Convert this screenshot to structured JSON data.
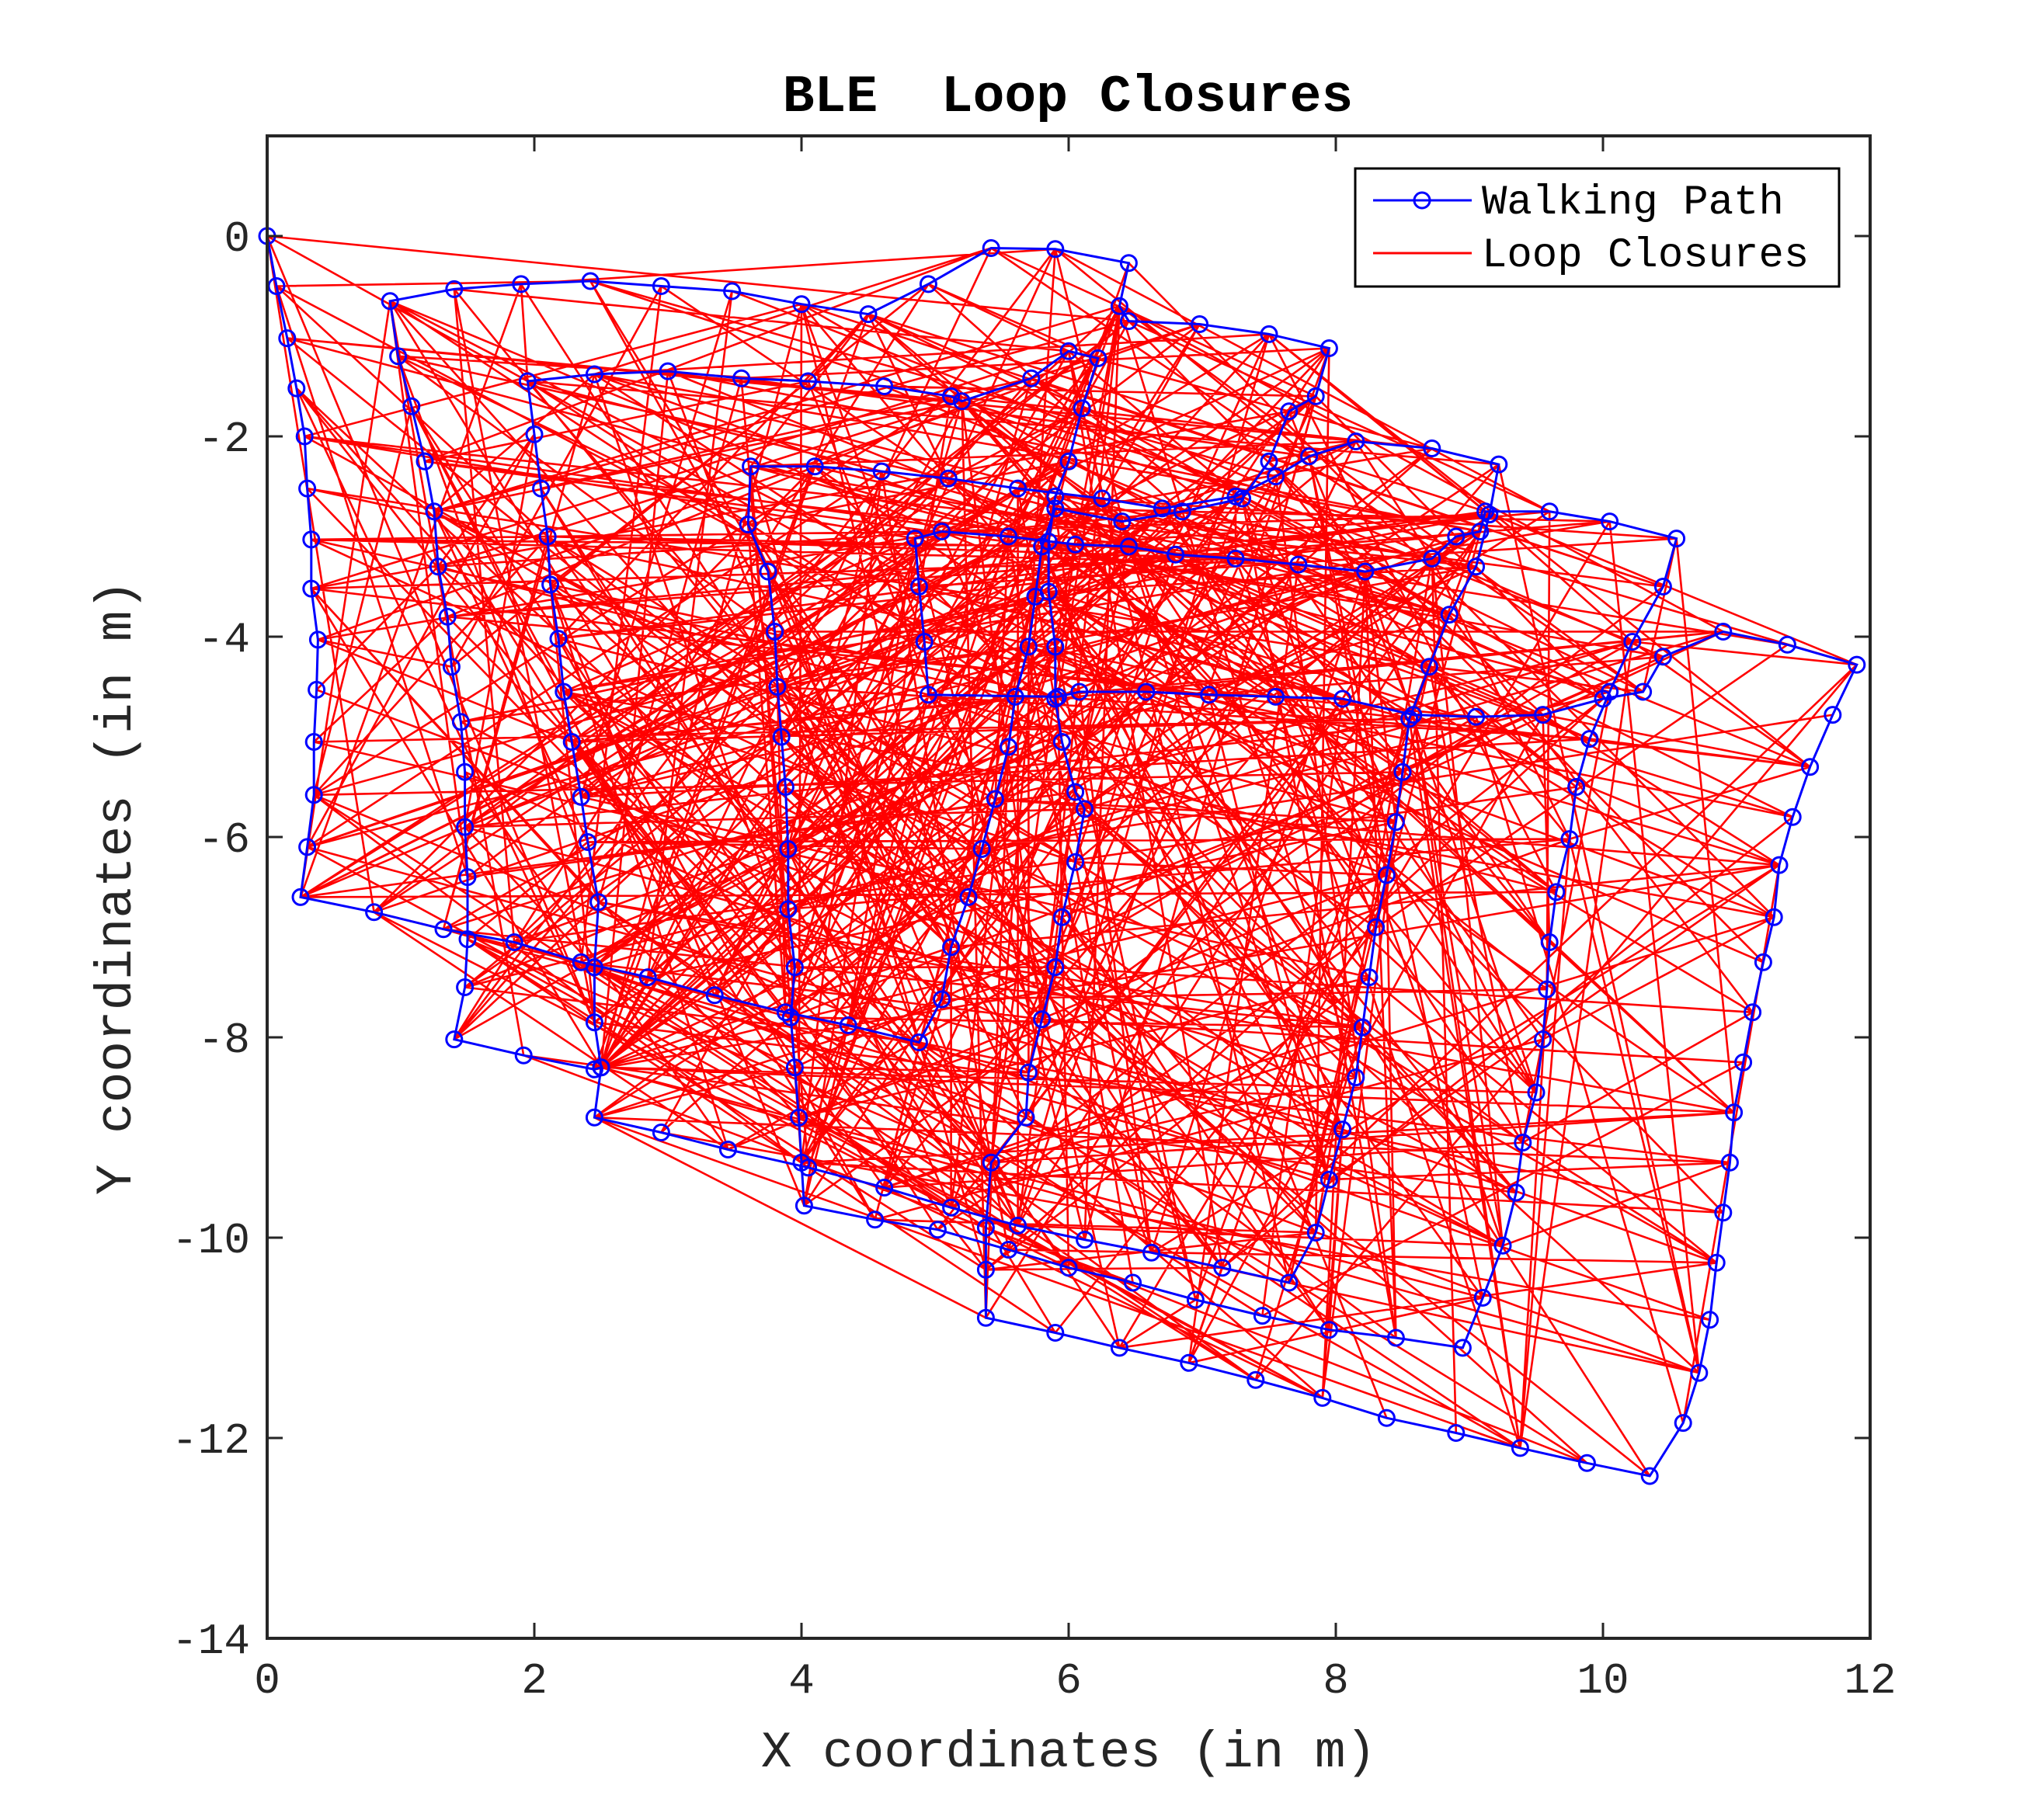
{
  "chart_data": {
    "type": "line",
    "title": "BLE  Loop Closures",
    "xlabel": "X coordinates (in m)",
    "ylabel": "Y coordinates (in m)",
    "xlim": [
      0,
      12
    ],
    "ylim": [
      -14,
      1
    ],
    "xticks": [
      "0",
      "2",
      "4",
      "6",
      "8",
      "10",
      "12"
    ],
    "yticks": [
      "0",
      "-2",
      "-4",
      "-6",
      "-8",
      "-10",
      "-12",
      "-14"
    ],
    "grid": false,
    "legend_position": "top-right",
    "series": [
      {
        "name": "Walking Path",
        "color": "#0000ff",
        "marker": "circle",
        "points": [
          [
            0,
            0
          ],
          [
            0.07,
            -0.5
          ],
          [
            0.15,
            -1.02
          ],
          [
            0.22,
            -1.52
          ],
          [
            0.28,
            -2.0
          ],
          [
            0.3,
            -2.52
          ],
          [
            0.33,
            -3.03
          ],
          [
            0.33,
            -3.52
          ],
          [
            0.38,
            -4.03
          ],
          [
            0.37,
            -4.53
          ],
          [
            0.35,
            -5.05
          ],
          [
            0.35,
            -5.58
          ],
          [
            0.3,
            -6.1
          ],
          [
            0.25,
            -6.6
          ],
          [
            0.8,
            -6.75
          ],
          [
            1.32,
            -6.92
          ],
          [
            1.85,
            -7.05
          ],
          [
            2.35,
            -7.25
          ],
          [
            2.85,
            -7.4
          ],
          [
            3.35,
            -7.58
          ],
          [
            3.88,
            -7.75
          ],
          [
            4.35,
            -7.88
          ],
          [
            4.88,
            -8.05
          ],
          [
            5.05,
            -7.62
          ],
          [
            5.12,
            -7.1
          ],
          [
            5.25,
            -6.6
          ],
          [
            5.35,
            -6.12
          ],
          [
            5.45,
            -5.62
          ],
          [
            5.55,
            -5.1
          ],
          [
            5.6,
            -4.6
          ],
          [
            5.7,
            -4.1
          ],
          [
            5.75,
            -3.6
          ],
          [
            5.8,
            -3.1
          ],
          [
            5.9,
            -2.72
          ],
          [
            6.4,
            -2.85
          ],
          [
            6.85,
            -2.75
          ],
          [
            7.3,
            -2.62
          ],
          [
            7.5,
            -2.25
          ],
          [
            7.65,
            -1.75
          ],
          [
            7.85,
            -1.6
          ],
          [
            7.95,
            -1.12
          ],
          [
            7.5,
            -0.98
          ],
          [
            6.98,
            -0.88
          ],
          [
            6.45,
            -0.85
          ],
          [
            6.38,
            -0.7
          ],
          [
            6.45,
            -0.27
          ],
          [
            5.9,
            -0.13
          ],
          [
            5.42,
            -0.12
          ],
          [
            4.95,
            -0.48
          ],
          [
            4.5,
            -0.78
          ],
          [
            4.0,
            -0.68
          ],
          [
            3.48,
            -0.55
          ],
          [
            2.95,
            -0.5
          ],
          [
            2.42,
            -0.45
          ],
          [
            1.9,
            -0.48
          ],
          [
            1.4,
            -0.53
          ],
          [
            0.92,
            -0.65
          ],
          [
            0.98,
            -1.2
          ],
          [
            1.08,
            -1.7
          ],
          [
            1.18,
            -2.25
          ],
          [
            1.25,
            -2.75
          ],
          [
            1.28,
            -3.3
          ],
          [
            1.35,
            -3.8
          ],
          [
            1.38,
            -4.3
          ],
          [
            1.45,
            -4.85
          ],
          [
            1.48,
            -5.35
          ],
          [
            1.48,
            -5.9
          ],
          [
            1.5,
            -6.4
          ],
          [
            1.5,
            -7.02
          ],
          [
            1.48,
            -7.5
          ],
          [
            1.4,
            -8.02
          ],
          [
            1.92,
            -8.18
          ],
          [
            2.45,
            -8.32
          ],
          [
            2.5,
            -8.3
          ],
          [
            2.45,
            -7.85
          ],
          [
            2.45,
            -7.3
          ],
          [
            2.48,
            -6.65
          ],
          [
            2.4,
            -6.05
          ],
          [
            2.35,
            -5.6
          ],
          [
            2.28,
            -5.05
          ],
          [
            2.22,
            -4.55
          ],
          [
            2.18,
            -4.02
          ],
          [
            2.12,
            -3.48
          ],
          [
            2.1,
            -3.0
          ],
          [
            2.05,
            -2.52
          ],
          [
            2.0,
            -1.98
          ],
          [
            1.95,
            -1.45
          ],
          [
            2.45,
            -1.38
          ],
          [
            3.0,
            -1.35
          ],
          [
            3.55,
            -1.42
          ],
          [
            4.05,
            -1.45
          ],
          [
            4.62,
            -1.5
          ],
          [
            5.12,
            -1.6
          ],
          [
            5.2,
            -1.65
          ],
          [
            5.72,
            -1.42
          ],
          [
            6.0,
            -1.15
          ],
          [
            6.22,
            -1.22
          ],
          [
            6.1,
            -1.72
          ],
          [
            6.0,
            -2.25
          ],
          [
            5.9,
            -2.6
          ],
          [
            5.85,
            -3.05
          ],
          [
            5.85,
            -3.55
          ],
          [
            5.9,
            -4.1
          ],
          [
            5.9,
            -4.62
          ],
          [
            5.95,
            -5.05
          ],
          [
            6.05,
            -5.55
          ],
          [
            6.12,
            -5.72
          ],
          [
            6.05,
            -6.25
          ],
          [
            5.95,
            -6.8
          ],
          [
            5.9,
            -7.3
          ],
          [
            5.8,
            -7.82
          ],
          [
            5.7,
            -8.35
          ],
          [
            5.68,
            -8.8
          ],
          [
            5.42,
            -9.25
          ],
          [
            5.38,
            -9.9
          ],
          [
            5.38,
            -10.32
          ],
          [
            5.38,
            -10.8
          ],
          [
            5.9,
            -10.95
          ],
          [
            6.38,
            -11.1
          ],
          [
            6.9,
            -11.25
          ],
          [
            7.4,
            -11.42
          ],
          [
            7.9,
            -11.6
          ],
          [
            8.38,
            -11.8
          ],
          [
            8.9,
            -11.95
          ],
          [
            9.38,
            -12.1
          ],
          [
            9.88,
            -12.25
          ],
          [
            10.35,
            -12.38
          ],
          [
            10.6,
            -11.85
          ],
          [
            10.72,
            -11.35
          ],
          [
            10.8,
            -10.82
          ],
          [
            10.85,
            -10.25
          ],
          [
            10.9,
            -9.75
          ],
          [
            10.95,
            -9.25
          ],
          [
            10.98,
            -8.75
          ],
          [
            11.05,
            -8.25
          ],
          [
            11.12,
            -7.75
          ],
          [
            11.2,
            -7.25
          ],
          [
            11.28,
            -6.8
          ],
          [
            11.32,
            -6.28
          ],
          [
            11.42,
            -5.8
          ],
          [
            11.55,
            -5.3
          ],
          [
            11.72,
            -4.78
          ],
          [
            11.9,
            -4.28
          ],
          [
            11.38,
            -4.08
          ],
          [
            10.9,
            -3.95
          ],
          [
            10.45,
            -4.2
          ],
          [
            10.3,
            -4.55
          ],
          [
            10.0,
            -4.62
          ],
          [
            9.55,
            -4.78
          ],
          [
            9.05,
            -4.8
          ],
          [
            8.58,
            -4.78
          ],
          [
            8.05,
            -4.62
          ],
          [
            7.55,
            -4.6
          ],
          [
            7.05,
            -4.58
          ],
          [
            6.58,
            -4.55
          ],
          [
            6.08,
            -4.55
          ],
          [
            5.92,
            -4.6
          ],
          [
            4.95,
            -4.58
          ],
          [
            4.92,
            -4.05
          ],
          [
            4.88,
            -3.5
          ],
          [
            4.85,
            -3.02
          ],
          [
            5.05,
            -2.95
          ],
          [
            5.55,
            -3.0
          ],
          [
            6.05,
            -3.08
          ],
          [
            6.45,
            -3.1
          ],
          [
            6.8,
            -3.18
          ],
          [
            7.25,
            -3.22
          ],
          [
            7.72,
            -3.28
          ],
          [
            8.22,
            -3.35
          ],
          [
            8.72,
            -3.22
          ],
          [
            8.9,
            -3.0
          ],
          [
            9.08,
            -2.95
          ],
          [
            9.12,
            -2.75
          ],
          [
            9.6,
            -2.75
          ],
          [
            10.05,
            -2.85
          ],
          [
            10.55,
            -3.02
          ],
          [
            10.45,
            -3.5
          ],
          [
            10.22,
            -4.05
          ],
          [
            10.05,
            -4.55
          ],
          [
            9.9,
            -5.02
          ],
          [
            9.8,
            -5.5
          ],
          [
            9.75,
            -6.02
          ],
          [
            9.65,
            -6.55
          ],
          [
            9.6,
            -7.05
          ],
          [
            9.58,
            -7.52
          ],
          [
            9.55,
            -8.02
          ],
          [
            9.5,
            -8.55
          ],
          [
            9.4,
            -9.05
          ],
          [
            9.35,
            -9.55
          ],
          [
            9.25,
            -10.08
          ],
          [
            9.1,
            -10.6
          ],
          [
            8.95,
            -11.1
          ],
          [
            8.45,
            -11.0
          ],
          [
            7.95,
            -10.92
          ],
          [
            7.45,
            -10.78
          ],
          [
            6.95,
            -10.62
          ],
          [
            6.48,
            -10.45
          ],
          [
            6.0,
            -10.3
          ],
          [
            5.55,
            -10.12
          ],
          [
            5.02,
            -9.92
          ],
          [
            4.55,
            -9.82
          ],
          [
            4.02,
            -9.68
          ],
          [
            4.0,
            -9.25
          ],
          [
            3.98,
            -8.8
          ],
          [
            3.95,
            -8.3
          ],
          [
            3.92,
            -7.8
          ],
          [
            3.95,
            -7.3
          ],
          [
            3.9,
            -6.72
          ],
          [
            3.9,
            -6.12
          ],
          [
            3.88,
            -5.5
          ],
          [
            3.85,
            -5.0
          ],
          [
            3.82,
            -4.5
          ],
          [
            3.8,
            -3.95
          ],
          [
            3.75,
            -3.35
          ],
          [
            3.6,
            -2.88
          ],
          [
            3.62,
            -2.3
          ],
          [
            4.1,
            -2.3
          ],
          [
            4.6,
            -2.35
          ],
          [
            5.1,
            -2.42
          ],
          [
            5.62,
            -2.52
          ],
          [
            6.25,
            -2.62
          ],
          [
            6.7,
            -2.72
          ],
          [
            7.25,
            -2.6
          ],
          [
            7.55,
            -2.4
          ],
          [
            7.8,
            -2.2
          ],
          [
            8.15,
            -2.05
          ],
          [
            8.72,
            -2.12
          ],
          [
            9.22,
            -2.28
          ],
          [
            9.15,
            -2.78
          ],
          [
            9.05,
            -3.3
          ],
          [
            8.85,
            -3.78
          ],
          [
            8.7,
            -4.3
          ],
          [
            8.55,
            -4.82
          ],
          [
            8.5,
            -5.35
          ],
          [
            8.45,
            -5.85
          ],
          [
            8.38,
            -6.38
          ],
          [
            8.3,
            -6.9
          ],
          [
            8.25,
            -7.4
          ],
          [
            8.2,
            -7.9
          ],
          [
            8.15,
            -8.4
          ],
          [
            8.05,
            -8.92
          ],
          [
            7.95,
            -9.42
          ],
          [
            7.85,
            -9.95
          ],
          [
            7.65,
            -10.45
          ],
          [
            7.15,
            -10.3
          ],
          [
            6.62,
            -10.15
          ],
          [
            6.12,
            -10.02
          ],
          [
            5.62,
            -9.88
          ],
          [
            5.12,
            -9.7
          ],
          [
            4.62,
            -9.5
          ],
          [
            4.05,
            -9.3
          ],
          [
            3.45,
            -9.12
          ],
          [
            2.95,
            -8.95
          ],
          [
            2.45,
            -8.8
          ],
          [
            2.5,
            -8.3
          ]
        ]
      },
      {
        "name": "Loop Closures",
        "color": "#ff0000"
      }
    ]
  }
}
